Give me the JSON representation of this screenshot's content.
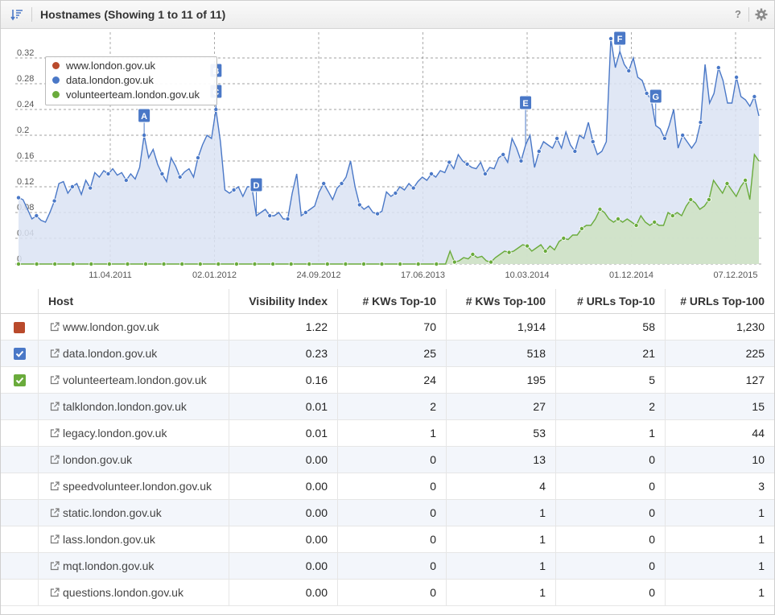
{
  "header": {
    "title": "Hostnames (Showing 1 to 11 of 11)",
    "help_label": "?"
  },
  "chart_data": {
    "type": "area",
    "x_tick_labels": [
      "11.04.2011",
      "02.01.2012",
      "24.09.2012",
      "17.06.2013",
      "10.03.2014",
      "01.12.2014",
      "07.12.2015"
    ],
    "y_tick_labels": [
      "0",
      "0.04",
      "0.08",
      "0.12",
      "0.16",
      "0.2",
      "0.24",
      "0.28",
      "0.32"
    ],
    "ylim": [
      0,
      0.36
    ],
    "grid": true,
    "legend_position": "top-left",
    "series": [
      {
        "name": "www.london.gov.uk",
        "color": "#b94a2c",
        "values": []
      },
      {
        "name": "data.london.gov.uk",
        "color": "#4a78c7",
        "values": [
          0.103,
          0.1,
          0.085,
          0.07,
          0.075,
          0.068,
          0.065,
          0.08,
          0.098,
          0.125,
          0.128,
          0.11,
          0.12,
          0.125,
          0.108,
          0.13,
          0.118,
          0.142,
          0.135,
          0.145,
          0.14,
          0.148,
          0.138,
          0.142,
          0.13,
          0.14,
          0.132,
          0.15,
          0.2,
          0.165,
          0.178,
          0.155,
          0.14,
          0.128,
          0.165,
          0.152,
          0.135,
          0.143,
          0.148,
          0.135,
          0.165,
          0.185,
          0.2,
          0.195,
          0.24,
          0.19,
          0.115,
          0.11,
          0.115,
          0.12,
          0.105,
          0.12,
          0.12,
          0.075,
          0.08,
          0.085,
          0.075,
          0.075,
          0.08,
          0.07,
          0.07,
          0.11,
          0.14,
          0.075,
          0.08,
          0.085,
          0.09,
          0.112,
          0.125,
          0.113,
          0.1,
          0.118,
          0.125,
          0.135,
          0.16,
          0.12,
          0.092,
          0.085,
          0.09,
          0.08,
          0.078,
          0.082,
          0.112,
          0.105,
          0.11,
          0.12,
          0.115,
          0.125,
          0.118,
          0.128,
          0.135,
          0.13,
          0.14,
          0.135,
          0.145,
          0.142,
          0.158,
          0.148,
          0.17,
          0.16,
          0.155,
          0.15,
          0.148,
          0.158,
          0.14,
          0.15,
          0.148,
          0.165,
          0.17,
          0.158,
          0.195,
          0.18,
          0.16,
          0.185,
          0.2,
          0.15,
          0.175,
          0.19,
          0.185,
          0.18,
          0.195,
          0.18,
          0.205,
          0.185,
          0.175,
          0.2,
          0.195,
          0.22,
          0.19,
          0.17,
          0.175,
          0.19,
          0.35,
          0.305,
          0.33,
          0.31,
          0.3,
          0.32,
          0.29,
          0.285,
          0.265,
          0.255,
          0.215,
          0.21,
          0.195,
          0.215,
          0.24,
          0.18,
          0.2,
          0.19,
          0.18,
          0.19,
          0.22,
          0.31,
          0.25,
          0.265,
          0.305,
          0.285,
          0.25,
          0.25,
          0.29,
          0.26,
          0.255,
          0.245,
          0.26,
          0.23
        ]
      },
      {
        "name": "volunteerteam.london.gov.uk",
        "color": "#6aab3c",
        "values": [
          0,
          0,
          0,
          0,
          0,
          0,
          0,
          0,
          0,
          0,
          0,
          0,
          0,
          0,
          0,
          0,
          0,
          0,
          0,
          0,
          0,
          0,
          0,
          0,
          0,
          0,
          0,
          0,
          0,
          0,
          0,
          0,
          0,
          0,
          0,
          0,
          0,
          0,
          0,
          0,
          0,
          0,
          0,
          0,
          0,
          0,
          0,
          0,
          0,
          0,
          0,
          0,
          0,
          0,
          0,
          0,
          0,
          0,
          0,
          0,
          0,
          0,
          0,
          0,
          0,
          0,
          0,
          0,
          0,
          0,
          0,
          0,
          0,
          0,
          0,
          0,
          0,
          0,
          0,
          0,
          0,
          0,
          0,
          0,
          0,
          0,
          0,
          0,
          0,
          0,
          0,
          0,
          0,
          0,
          0,
          0.02,
          0.003,
          0.005,
          0.01,
          0.008,
          0.015,
          0.01,
          0.012,
          0.005,
          0.003,
          0.01,
          0.015,
          0.02,
          0.018,
          0.02,
          0.025,
          0.03,
          0.028,
          0.02,
          0.025,
          0.03,
          0.02,
          0.028,
          0.022,
          0.035,
          0.04,
          0.038,
          0.045,
          0.045,
          0.055,
          0.06,
          0.06,
          0.07,
          0.085,
          0.08,
          0.07,
          0.065,
          0.07,
          0.065,
          0.07,
          0.065,
          0.06,
          0.075,
          0.065,
          0.06,
          0.065,
          0.06,
          0.06,
          0.08,
          0.075,
          0.08,
          0.075,
          0.09,
          0.1,
          0.095,
          0.085,
          0.09,
          0.1,
          0.13,
          0.12,
          0.11,
          0.125,
          0.115,
          0.105,
          0.12,
          0.13,
          0.1,
          0.17,
          0.16
        ]
      }
    ],
    "annotations": [
      "A",
      "B",
      "C",
      "D",
      "E",
      "F",
      "G"
    ]
  },
  "table": {
    "columns": [
      "Host",
      "Visibility Index",
      "# KWs Top-10",
      "# KWs Top-100",
      "# URLs Top-10",
      "# URLs Top-100"
    ],
    "rows": [
      {
        "host": "www.london.gov.uk",
        "vi": "1.22",
        "kw10": "70",
        "kw100": "1,914",
        "url10": "58",
        "url100": "1,230",
        "marker": "square",
        "color": "#b94a2c"
      },
      {
        "host": "data.london.gov.uk",
        "vi": "0.23",
        "kw10": "25",
        "kw100": "518",
        "url10": "21",
        "url100": "225",
        "marker": "check",
        "color": "#4a78c7"
      },
      {
        "host": "volunteerteam.london.gov.uk",
        "vi": "0.16",
        "kw10": "24",
        "kw100": "195",
        "url10": "5",
        "url100": "127",
        "marker": "check",
        "color": "#6aab3c"
      },
      {
        "host": "talklondon.london.gov.uk",
        "vi": "0.01",
        "kw10": "2",
        "kw100": "27",
        "url10": "2",
        "url100": "15",
        "marker": "none"
      },
      {
        "host": "legacy.london.gov.uk",
        "vi": "0.01",
        "kw10": "1",
        "kw100": "53",
        "url10": "1",
        "url100": "44",
        "marker": "none"
      },
      {
        "host": "london.gov.uk",
        "vi": "0.00",
        "kw10": "0",
        "kw100": "13",
        "url10": "0",
        "url100": "10",
        "marker": "none"
      },
      {
        "host": "speedvolunteer.london.gov.uk",
        "vi": "0.00",
        "kw10": "0",
        "kw100": "4",
        "url10": "0",
        "url100": "3",
        "marker": "none"
      },
      {
        "host": "static.london.gov.uk",
        "vi": "0.00",
        "kw10": "0",
        "kw100": "1",
        "url10": "0",
        "url100": "1",
        "marker": "none"
      },
      {
        "host": "lass.london.gov.uk",
        "vi": "0.00",
        "kw10": "0",
        "kw100": "1",
        "url10": "0",
        "url100": "1",
        "marker": "none"
      },
      {
        "host": "mqt.london.gov.uk",
        "vi": "0.00",
        "kw10": "0",
        "kw100": "1",
        "url10": "0",
        "url100": "1",
        "marker": "none"
      },
      {
        "host": "questions.london.gov.uk",
        "vi": "0.00",
        "kw10": "0",
        "kw100": "1",
        "url10": "0",
        "url100": "1",
        "marker": "none"
      }
    ]
  },
  "colors": {
    "annotation_flag": "#4a78c7",
    "data_fill": "#dbe3f3",
    "volunteer_fill": "#cfe2c5"
  }
}
